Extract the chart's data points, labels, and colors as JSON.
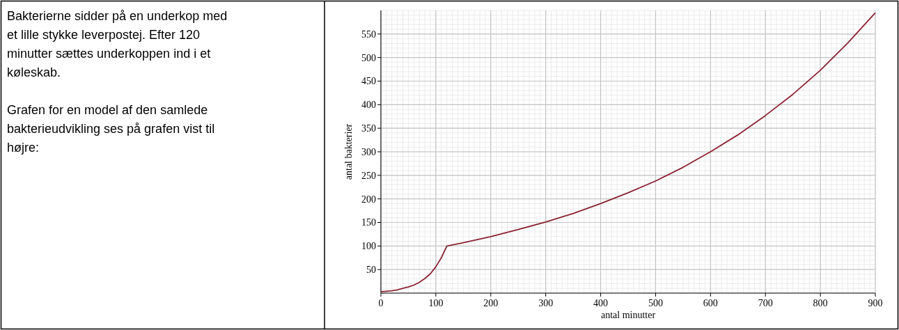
{
  "chart_data": {
    "type": "line",
    "annotations": [
      "Bakterierne sidder på en underkop med et lille stykke leverpostej. Efter 120 minutter sættes underkoppen ind i et køleskab.",
      "Grafen for en model af den samlede bakterieudvikling ses på grafen vist til højre:"
    ],
    "xlabel": "antal minutter",
    "ylabel": "antal bakterier",
    "x": [
      0,
      10,
      20,
      30,
      40,
      50,
      60,
      70,
      80,
      90,
      100,
      110,
      120,
      150,
      200,
      250,
      300,
      350,
      400,
      450,
      500,
      550,
      600,
      650,
      700,
      750,
      800,
      850,
      900
    ],
    "series": [
      {
        "color": "#8b2332",
        "values": [
          3,
          4,
          5,
          7,
          10,
          13,
          17,
          23,
          31,
          41,
          56,
          75,
          100,
          107,
          120,
          135,
          151,
          169,
          190,
          213,
          238,
          267,
          300,
          336,
          377,
          422,
          473,
          531,
          595
        ]
      }
    ],
    "xlim": [
      0,
      900
    ],
    "ylim": [
      0,
      600
    ],
    "xticks": [
      0,
      100,
      200,
      300,
      400,
      500,
      600,
      700,
      800,
      900
    ],
    "yticks": [
      50,
      100,
      150,
      200,
      250,
      300,
      350,
      400,
      450,
      500,
      550
    ],
    "grid": true,
    "marker": "none",
    "line_style": "solid"
  }
}
